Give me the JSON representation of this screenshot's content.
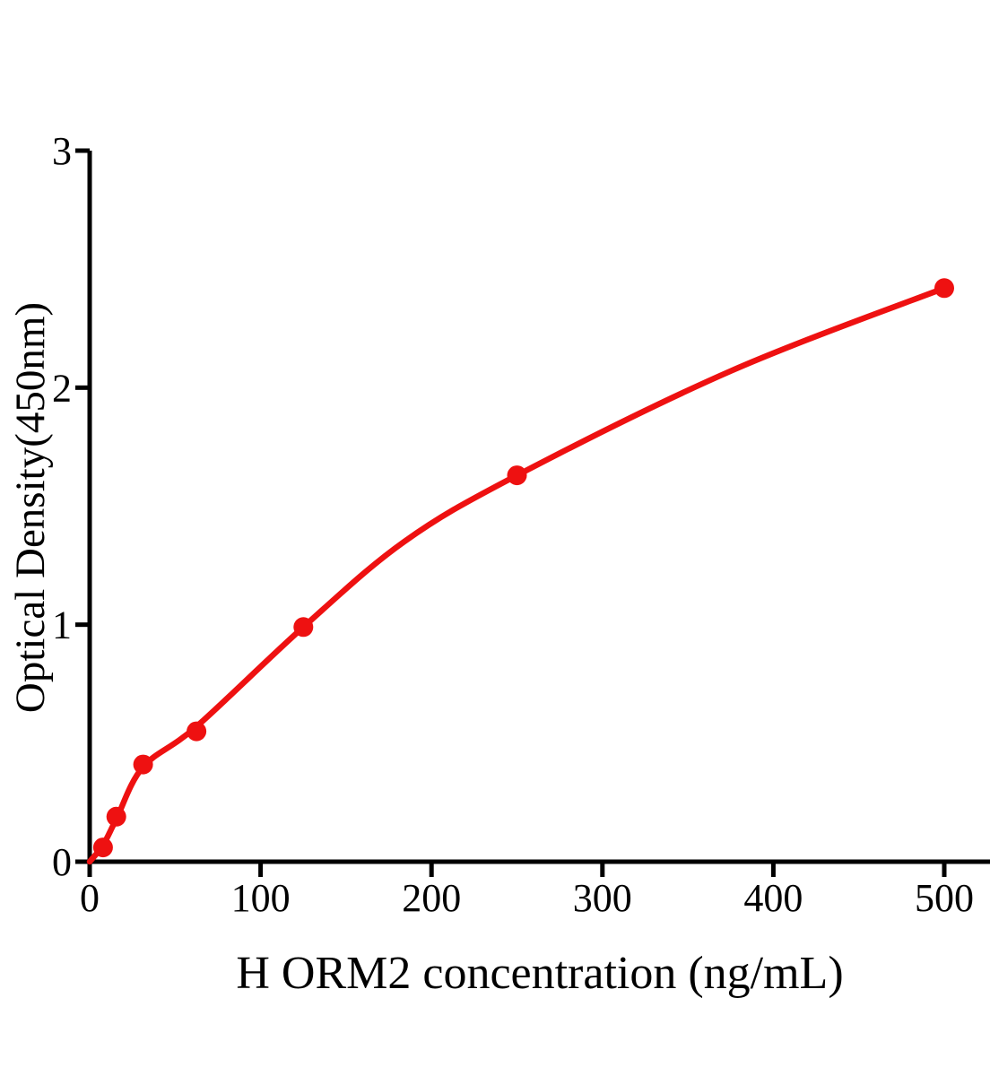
{
  "chart_data": {
    "type": "scatter",
    "title": "",
    "xlabel": "H ORM2 concentration (ng/mL)",
    "ylabel": "Optical Density(450nm)",
    "x_tick_labels": [
      "0",
      "100",
      "200",
      "300",
      "400",
      "500"
    ],
    "x_tick_values": [
      0,
      100,
      200,
      300,
      400,
      500
    ],
    "y_tick_labels": [
      "0",
      "1",
      "2",
      "3"
    ],
    "y_tick_values": [
      0,
      1,
      2,
      3
    ],
    "xlim": [
      0,
      527
    ],
    "ylim": [
      0,
      3
    ],
    "grid": false,
    "legend": "none",
    "series": [
      {
        "name": "standard-curve-points",
        "points": [
          {
            "x": 7.8,
            "y": 0.06
          },
          {
            "x": 15.6,
            "y": 0.19
          },
          {
            "x": 31.25,
            "y": 0.41
          },
          {
            "x": 62.5,
            "y": 0.55
          },
          {
            "x": 125,
            "y": 0.99
          },
          {
            "x": 250,
            "y": 1.63
          },
          {
            "x": 500,
            "y": 2.42
          }
        ]
      }
    ],
    "fit_curve_samples": [
      [
        0,
        0.0
      ],
      [
        7.8,
        0.07
      ],
      [
        15.6,
        0.18
      ],
      [
        31.25,
        0.4
      ],
      [
        62.5,
        0.57
      ],
      [
        125,
        0.99
      ],
      [
        184,
        1.35
      ],
      [
        250,
        1.63
      ],
      [
        375,
        2.07
      ],
      [
        500,
        2.42
      ]
    ],
    "point_color": "#ee1111",
    "curve_color": "#ee1111",
    "axis_color": "#000000",
    "text_color": "#000000"
  }
}
